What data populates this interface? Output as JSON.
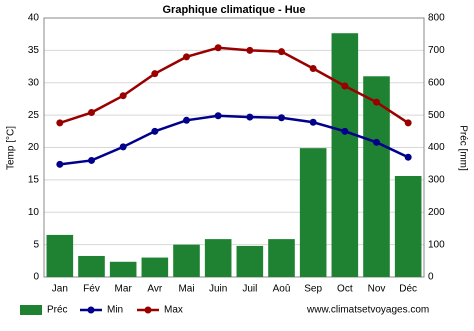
{
  "chart_data": {
    "type": "combo",
    "title": "Graphique climatique - Hue",
    "y_label": "Temp [°C]",
    "y2_label": "Préc [mm]",
    "categories": [
      "Jan",
      "Fév",
      "Mar",
      "Avr",
      "Mai",
      "Juin",
      "Juil",
      "Aoû",
      "Sep",
      "Oct",
      "Nov",
      "Déc"
    ],
    "ylim": [
      0,
      40
    ],
    "yticks": [
      0,
      5,
      10,
      15,
      20,
      25,
      30,
      35,
      40
    ],
    "y2lim": [
      0,
      800
    ],
    "y2ticks": [
      0,
      100,
      200,
      300,
      400,
      500,
      600,
      700,
      800
    ],
    "grid": true,
    "series": [
      {
        "name": "Préc",
        "type": "bar",
        "axis": "y2",
        "color": "#1e8232",
        "values": [
          130,
          65,
          47,
          60,
          100,
          117,
          96,
          117,
          398,
          753,
          620,
          312
        ]
      },
      {
        "name": "Min",
        "type": "line",
        "color": "#00008b",
        "values": [
          17.4,
          18,
          20.1,
          22.5,
          24.2,
          24.9,
          24.7,
          24.6,
          23.9,
          22.5,
          20.8,
          18.5
        ]
      },
      {
        "name": "Max",
        "type": "line",
        "color": "#990000",
        "values": [
          23.8,
          25.4,
          28,
          31.4,
          34,
          35.4,
          35,
          34.8,
          32.2,
          29.5,
          27,
          23.8
        ]
      }
    ],
    "source": "www.climatsetvoyages.com"
  }
}
